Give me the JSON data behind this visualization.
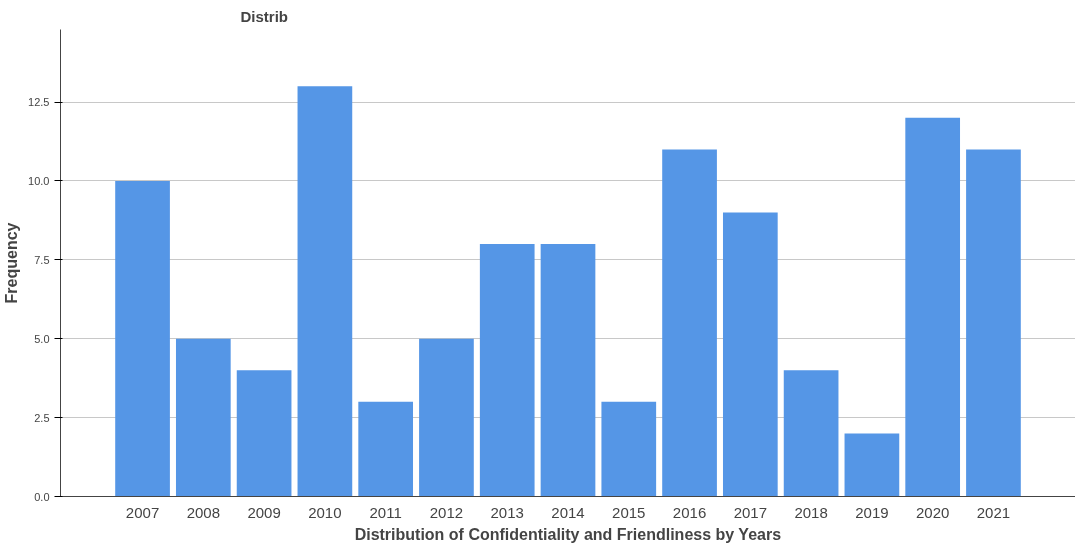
{
  "chart_data": {
    "type": "bar",
    "title": "Distrib",
    "xlabel": "Distribution of Confidentiality and Friendliness by Years",
    "ylabel": "Frequency",
    "categories": [
      "2007",
      "2008",
      "2009",
      "2010",
      "2011",
      "2012",
      "2013",
      "2014",
      "2015",
      "2016",
      "2017",
      "2018",
      "2019",
      "2020",
      "2021"
    ],
    "values": [
      10,
      5,
      4,
      13,
      3,
      5,
      8,
      8,
      3,
      11,
      9,
      4,
      2,
      12,
      11
    ],
    "color": "#5596e6",
    "ylim": [
      0,
      14.8
    ],
    "yticks": [
      {
        "value": 0,
        "label": "0.0"
      },
      {
        "value": 2.5,
        "label": "2.5"
      },
      {
        "value": 5,
        "label": "5.0"
      },
      {
        "value": 7.5,
        "label": "7.5"
      },
      {
        "value": 10,
        "label": "10.0"
      },
      {
        "value": 12.5,
        "label": "12.5"
      }
    ],
    "grid": "y"
  }
}
